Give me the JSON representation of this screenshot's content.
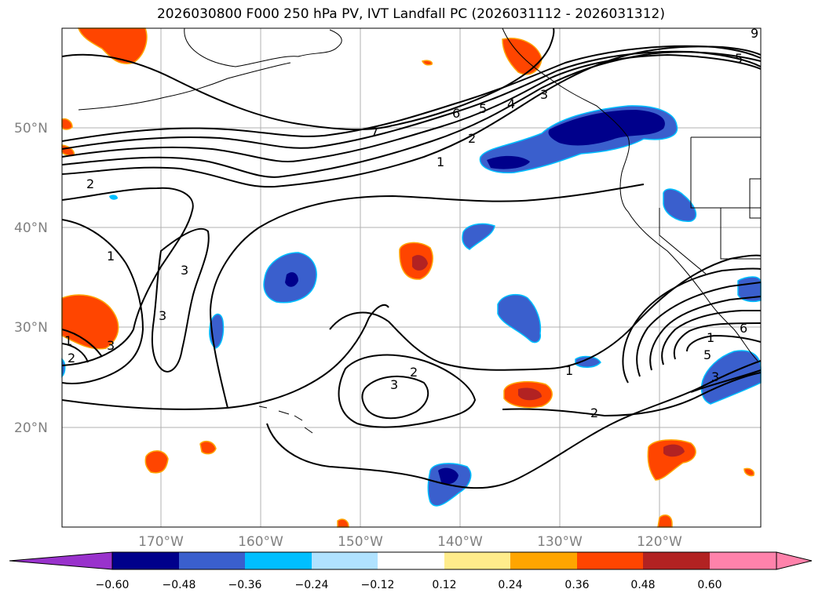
{
  "figure": {
    "title": "2026030800 F000 250 hPa PV, IVT Landfall PC (2026031112 - 2026031312)"
  },
  "map": {
    "lat_ticks": [
      "50°N",
      "40°N",
      "30°N",
      "20°N"
    ],
    "lon_ticks": [
      "170°W",
      "160°W",
      "150°W",
      "140°W",
      "130°W",
      "120°W"
    ],
    "contour_labels": [
      "2",
      "1",
      "3",
      "3",
      "1",
      "7",
      "6",
      "5",
      "4",
      "3",
      "2",
      "1",
      "5",
      "9",
      "2",
      "3",
      "1",
      "2",
      "1",
      "6",
      "3",
      "5",
      "3",
      "2"
    ]
  },
  "colorbar": {
    "tick_labels": [
      "−0.60",
      "−0.48",
      "−0.36",
      "−0.24",
      "−0.12",
      "0.12",
      "0.24",
      "0.36",
      "0.48",
      "0.60"
    ],
    "colors": [
      "#9932cc",
      "#00008b",
      "#3a5fcd",
      "#00bfff",
      "#b0e2ff",
      "#ffffff",
      "#ffec8b",
      "#ffa500",
      "#ff4500",
      "#b22222",
      "#ff82ab"
    ]
  }
}
